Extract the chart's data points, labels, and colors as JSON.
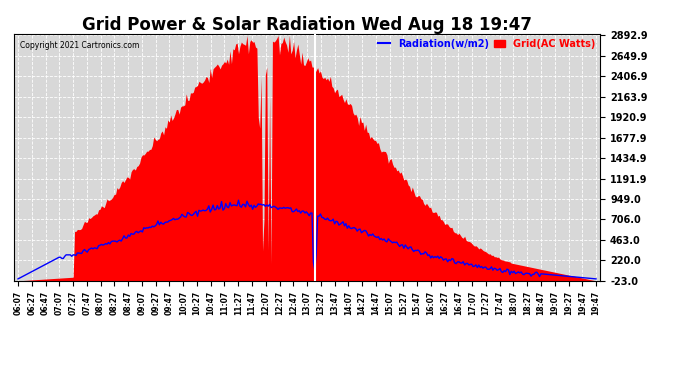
{
  "title": "Grid Power & Solar Radiation Wed Aug 18 19:47",
  "copyright": "Copyright 2021 Cartronics.com",
  "legend_radiation": "Radiation(w/m2)",
  "legend_grid": "Grid(AC Watts)",
  "yticks": [
    2892.9,
    2649.9,
    2406.9,
    2163.9,
    1920.9,
    1677.9,
    1434.9,
    1191.9,
    949.0,
    706.0,
    463.0,
    220.0,
    -23.0
  ],
  "ymin": -23.0,
  "ymax": 2892.9,
  "background_color": "#ffffff",
  "plot_bg_color": "#d8d8d8",
  "grid_color": "#ffffff",
  "radiation_color": "#0000ff",
  "grid_fill_color": "#ff0000",
  "title_fontsize": 12,
  "n_points": 410,
  "peak_idx": 175,
  "sigma_grid": 75,
  "sigma_rad": 85,
  "white_line_idx": 175
}
